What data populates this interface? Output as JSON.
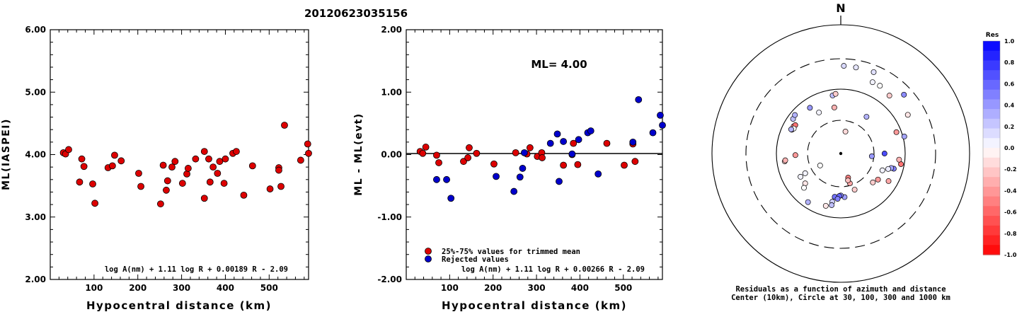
{
  "title": "20120623035156",
  "chart_data": [
    {
      "type": "scatter",
      "ylabel": "ML(IASPEI)",
      "xlabel": "Hypocentral distance (km)",
      "xlim": [
        0,
        590
      ],
      "ylim": [
        2.0,
        6.0
      ],
      "xticks": [
        "100",
        "200",
        "300",
        "400",
        "500"
      ],
      "yticks": [
        "2.00",
        "3.00",
        "4.00",
        "5.00",
        "6.00"
      ],
      "formula": "log A(nm) + 1.11 log R + 0.00189 R - 2.09",
      "points": [
        [
          30,
          4.03
        ],
        [
          35,
          4.01
        ],
        [
          42,
          4.08
        ],
        [
          67,
          3.56
        ],
        [
          72,
          3.93
        ],
        [
          77,
          3.81
        ],
        [
          97,
          3.53
        ],
        [
          102,
          3.22
        ],
        [
          132,
          3.79
        ],
        [
          142,
          3.82
        ],
        [
          147,
          3.99
        ],
        [
          162,
          3.9
        ],
        [
          202,
          3.7
        ],
        [
          207,
          3.49
        ],
        [
          252,
          3.21
        ],
        [
          258,
          3.83
        ],
        [
          265,
          3.43
        ],
        [
          268,
          3.58
        ],
        [
          278,
          3.8
        ],
        [
          285,
          3.89
        ],
        [
          302,
          3.54
        ],
        [
          312,
          3.69
        ],
        [
          315,
          3.78
        ],
        [
          332,
          3.93
        ],
        [
          352,
          4.05
        ],
        [
          352,
          3.3
        ],
        [
          362,
          3.93
        ],
        [
          365,
          3.56
        ],
        [
          372,
          3.8
        ],
        [
          382,
          3.7
        ],
        [
          387,
          3.89
        ],
        [
          397,
          3.54
        ],
        [
          400,
          3.93
        ],
        [
          417,
          4.02
        ],
        [
          425,
          4.05
        ],
        [
          442,
          3.35
        ],
        [
          462,
          3.82
        ],
        [
          502,
          3.45
        ],
        [
          522,
          3.79
        ],
        [
          522,
          3.75
        ],
        [
          527,
          3.49
        ],
        [
          535,
          4.47
        ],
        [
          572,
          3.91
        ],
        [
          588,
          4.17
        ],
        [
          590,
          4.02
        ]
      ]
    },
    {
      "type": "scatter",
      "ylabel": "ML - ML(evt)",
      "xlabel": "Hypocentral distance (km)",
      "xlim": [
        0,
        590
      ],
      "ylim": [
        -2.0,
        2.0
      ],
      "xticks": [
        "100",
        "200",
        "300",
        "400",
        "500"
      ],
      "yticks": [
        "-2.00",
        "-1.00",
        "0.00",
        "1.00",
        "2.00"
      ],
      "annotation": "ML= 4.00",
      "formula": "log A(nm) + 1.11 log R + 0.00266 R - 2.09",
      "legend": [
        "25%-75% values for trimmed mean",
        "Rejected values"
      ],
      "series": [
        {
          "name": "25%-75% values for trimmed mean",
          "color": "#dd0000",
          "points": [
            [
              32,
              0.05
            ],
            [
              38,
              0.02
            ],
            [
              45,
              0.12
            ],
            [
              70,
              -0.01
            ],
            [
              75,
              -0.13
            ],
            [
              132,
              -0.11
            ],
            [
              142,
              -0.05
            ],
            [
              145,
              0.11
            ],
            [
              162,
              0.02
            ],
            [
              202,
              -0.15
            ],
            [
              252,
              0.03
            ],
            [
              278,
              0.01
            ],
            [
              285,
              0.11
            ],
            [
              302,
              -0.03
            ],
            [
              312,
              0.03
            ],
            [
              313,
              -0.05
            ],
            [
              362,
              -0.17
            ],
            [
              385,
              0.18
            ],
            [
              395,
              -0.16
            ],
            [
              462,
              0.18
            ],
            [
              502,
              -0.17
            ],
            [
              522,
              0.17
            ],
            [
              527,
              -0.11
            ],
            [
              382,
              0.0
            ]
          ]
        },
        {
          "name": "Rejected values",
          "color": "#0000cc",
          "points": [
            [
              70,
              -0.4
            ],
            [
              93,
              -0.4
            ],
            [
              103,
              -0.7
            ],
            [
              207,
              -0.35
            ],
            [
              248,
              -0.59
            ],
            [
              262,
              -0.36
            ],
            [
              268,
              -0.22
            ],
            [
              272,
              0.03
            ],
            [
              332,
              0.18
            ],
            [
              348,
              0.33
            ],
            [
              352,
              -0.43
            ],
            [
              362,
              0.21
            ],
            [
              382,
              0.01
            ],
            [
              397,
              0.24
            ],
            [
              418,
              0.35
            ],
            [
              425,
              0.38
            ],
            [
              442,
              -0.31
            ],
            [
              522,
              0.2
            ],
            [
              535,
              0.88
            ],
            [
              568,
              0.35
            ],
            [
              585,
              0.63
            ],
            [
              590,
              0.47
            ]
          ]
        }
      ]
    },
    {
      "type": "scatter",
      "subtype": "polar",
      "north_label": "N",
      "caption_line1": "Residuals as a function of azimuth and distance",
      "caption_line2": "Center (10km), Circle at 30, 100, 300 and 1000 km",
      "colorbar": {
        "title": "Res",
        "ticks": [
          "1.0",
          "0.8",
          "0.6",
          "0.4",
          "0.2",
          "0.0",
          "-0.2",
          "-0.4",
          "-0.6",
          "-0.8",
          "-1.0"
        ],
        "positive_color": "#0000ff",
        "negative_color": "#ff0000"
      },
      "stations": [
        [
          2,
          232,
          0.15
        ],
        [
          10,
          230,
          0.1
        ],
        [
          22,
          233,
          0.12
        ],
        [
          47,
          221,
          0.45
        ],
        [
          24,
          164,
          0.05
        ],
        [
          30,
          165,
          0.0
        ],
        [
          40,
          150,
          -0.2
        ],
        [
          60,
          160,
          -0.1
        ],
        [
          75,
          105,
          0.35
        ],
        [
          69,
          83,
          -0.4
        ],
        [
          90,
          45,
          0.7
        ],
        [
          95,
          28,
          0.4
        ],
        [
          100,
          88,
          -0.55
        ],
        [
          96,
          80,
          -0.3
        ],
        [
          106,
          70,
          0.5
        ],
        [
          106,
          63,
          0.35
        ],
        [
          108,
          57,
          0.08
        ],
        [
          112,
          47,
          0.05
        ],
        [
          120,
          70,
          -0.35
        ],
        [
          125,
          48,
          -0.4
        ],
        [
          132,
          44,
          -0.2
        ],
        [
          159,
          37,
          -0.2
        ],
        [
          163,
          23,
          -0.5
        ],
        [
          163,
          28,
          -0.35
        ],
        [
          165,
          25,
          -0.25
        ],
        [
          175,
          45,
          0.38
        ],
        [
          180,
          42,
          0.45
        ],
        [
          188,
          45,
          0.55
        ],
        [
          182,
          43,
          0.6
        ],
        [
          184,
          48,
          0.5
        ],
        [
          190,
          55,
          0.2
        ],
        [
          190,
          63,
          0.25
        ],
        [
          196,
          68,
          -0.1
        ],
        [
          214,
          80,
          0.3
        ],
        [
          230,
          50,
          -0.1
        ],
        [
          227,
          58,
          0.0
        ],
        [
          240,
          50,
          0.05
        ],
        [
          241,
          40,
          0.05
        ],
        [
          262,
          74,
          -0.15
        ],
        [
          263,
          72,
          -0.3
        ],
        [
          268,
          48,
          -0.4
        ],
        [
          300,
          68,
          -0.45
        ],
        [
          302,
          66,
          -0.55
        ],
        [
          296,
          68,
          -0.3
        ],
        [
          298,
          65,
          0.0
        ],
        [
          296,
          70,
          0.3
        ],
        [
          306,
          81,
          0.25
        ],
        [
          310,
          84,
          0.3
        ],
        [
          326,
          70,
          0.4
        ],
        [
          352,
          80,
          0.25
        ],
        [
          355,
          84,
          -0.2
        ],
        [
          332,
          50,
          0.05
        ],
        [
          352,
          50,
          -0.3
        ],
        [
          240,
          22,
          0.0
        ],
        [
          12,
          21,
          -0.15
        ],
        [
          35,
          47,
          0.3
        ]
      ]
    }
  ]
}
